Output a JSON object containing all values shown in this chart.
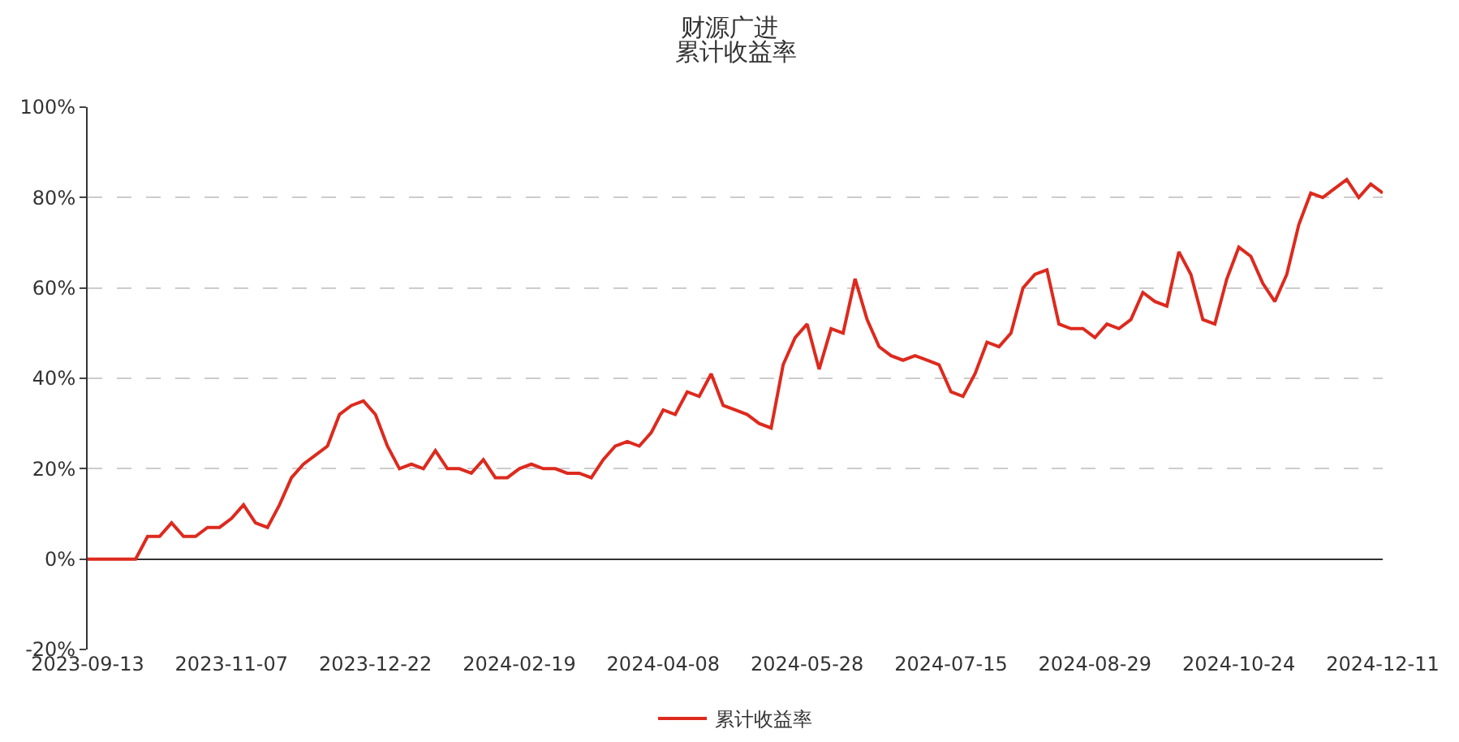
{
  "chart_data": {
    "type": "line",
    "title": "财源广进",
    "subtitle": "累计收益率",
    "categories": [
      "2023-09-13",
      null,
      null,
      null,
      null,
      null,
      null,
      null,
      null,
      null,
      null,
      null,
      "2023-11-07",
      null,
      null,
      null,
      null,
      null,
      null,
      null,
      null,
      null,
      null,
      null,
      "2023-12-22",
      null,
      null,
      null,
      null,
      null,
      null,
      null,
      null,
      null,
      null,
      null,
      "2024-02-19",
      null,
      null,
      null,
      null,
      null,
      null,
      null,
      null,
      null,
      null,
      null,
      "2024-04-08",
      null,
      null,
      null,
      null,
      null,
      null,
      null,
      null,
      null,
      null,
      null,
      "2024-05-28",
      null,
      null,
      null,
      null,
      null,
      null,
      null,
      null,
      null,
      null,
      null,
      "2024-07-15",
      null,
      null,
      null,
      null,
      null,
      null,
      null,
      null,
      null,
      null,
      null,
      "2024-08-29",
      null,
      null,
      null,
      null,
      null,
      null,
      null,
      null,
      null,
      null,
      null,
      "2024-10-24",
      null,
      null,
      null,
      null,
      null,
      null,
      null,
      null,
      null,
      null,
      null,
      "2024-12-11"
    ],
    "series": [
      {
        "name": "累计收益率",
        "color": "#dd2a1e",
        "values": [
          0,
          0,
          0,
          0,
          0,
          5,
          5,
          8,
          5,
          5,
          7,
          7,
          9,
          12,
          8,
          7,
          12,
          18,
          21,
          23,
          25,
          32,
          34,
          35,
          32,
          25,
          20,
          21,
          20,
          24,
          20,
          20,
          19,
          22,
          18,
          18,
          20,
          21,
          20,
          20,
          19,
          19,
          18,
          22,
          25,
          26,
          25,
          28,
          33,
          32,
          37,
          36,
          41,
          34,
          33,
          32,
          30,
          29,
          43,
          49,
          52,
          42,
          51,
          50,
          62,
          53,
          47,
          45,
          44,
          45,
          44,
          43,
          37,
          36,
          41,
          48,
          47,
          50,
          60,
          63,
          64,
          52,
          51,
          51,
          49,
          52,
          51,
          53,
          59,
          57,
          56,
          68,
          63,
          53,
          52,
          62,
          69,
          67,
          61,
          57,
          63,
          74,
          81,
          80,
          82,
          84,
          80,
          83,
          81
        ]
      }
    ],
    "ylim": [
      -20,
      100
    ],
    "yticks": [
      {
        "value": -20,
        "label": "-20%"
      },
      {
        "value": 0,
        "label": "0%"
      },
      {
        "value": 20,
        "label": "20%"
      },
      {
        "value": 40,
        "label": "40%"
      },
      {
        "value": 60,
        "label": "60%"
      },
      {
        "value": 80,
        "label": "80%"
      },
      {
        "value": 100,
        "label": "100%"
      }
    ],
    "grid": "y",
    "legend": "bottom",
    "line_style": "solid"
  }
}
